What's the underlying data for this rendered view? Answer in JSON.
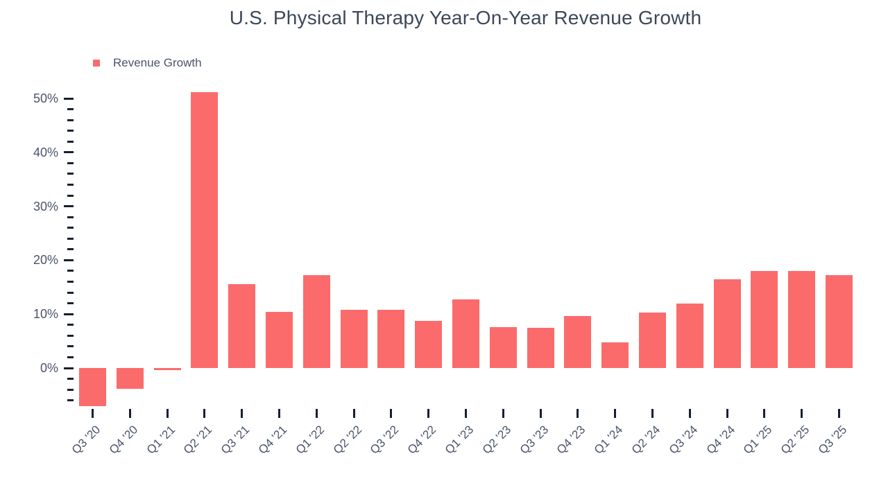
{
  "header": {
    "title": "U.S. Physical Therapy Year-On-Year Revenue Growth"
  },
  "legend": {
    "label": "Revenue Growth"
  },
  "colors": {
    "bar": "#fb6b6b",
    "title_text": "#3c4858",
    "axis_text": "#49546a",
    "tick_mark": "#16202e",
    "background": "#ffffff"
  },
  "chart_data": {
    "type": "bar",
    "title": "U.S. Physical Therapy Year-On-Year Revenue Growth",
    "xlabel": "",
    "ylabel": "",
    "legend_position": "top-left",
    "grid": false,
    "y_axis": {
      "unit": "%",
      "major_ticks": [
        0,
        10,
        20,
        30,
        40,
        50
      ],
      "major_tick_labels": [
        "0%",
        "10%",
        "20%",
        "30%",
        "40%",
        "50%"
      ],
      "minor_tick_step": 2,
      "minor_tick_min": -6,
      "minor_tick_max": 48,
      "ylim": [
        -8.5,
        52
      ]
    },
    "categories": [
      "Q3 '20",
      "Q4 '20",
      "Q1 '21",
      "Q2 '21",
      "Q3 '21",
      "Q4 '21",
      "Q1 '22",
      "Q2 '22",
      "Q3 '22",
      "Q4 '22",
      "Q1 '23",
      "Q2 '23",
      "Q3 '23",
      "Q4 '23",
      "Q1 '24",
      "Q2 '24",
      "Q3 '24",
      "Q4 '24",
      "Q1 '25",
      "Q2 '25",
      "Q3 '25"
    ],
    "series": [
      {
        "name": "Revenue Growth",
        "values": [
          -7.1,
          -3.8,
          -0.4,
          51.2,
          15.6,
          10.4,
          17.2,
          10.8,
          10.8,
          8.8,
          12.7,
          7.6,
          7.4,
          9.6,
          4.8,
          10.3,
          11.9,
          16.5,
          18.0,
          18.0,
          17.2
        ]
      }
    ]
  }
}
